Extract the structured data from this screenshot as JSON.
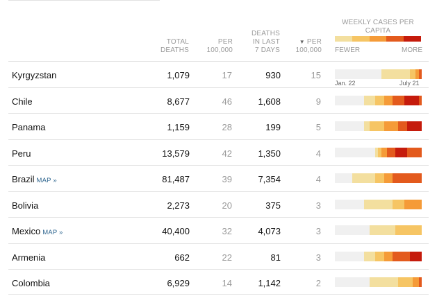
{
  "header": {
    "total_deaths": [
      "TOTAL",
      "DEATHS"
    ],
    "per_100k": [
      "PER",
      "100,000"
    ],
    "deaths_7d": [
      "DEATHS",
      "IN LAST",
      "7 DAYS"
    ],
    "per_100k_7d_arrow": "▼",
    "per_100k_7d": [
      "PER",
      "100,000"
    ],
    "weekly": [
      "WEEKLY CASES PER",
      "CAPITA"
    ]
  },
  "legend": {
    "fewer": "FEWER",
    "more": "MORE",
    "colors": [
      "#f3df9f",
      "#f6c564",
      "#f59b38",
      "#e35a1d",
      "#c51b0c"
    ]
  },
  "axis": {
    "start": "Jan. 22",
    "end": "July 21"
  },
  "colors": {
    "none": "#f0f0f0",
    "accent_link": "#326891"
  },
  "rows": [
    {
      "country": "Kyrgyzstan",
      "map": "",
      "total": "1,079",
      "per": "17",
      "deaths7": "930",
      "per7": "15",
      "weeks": [
        0,
        0,
        0,
        0,
        0,
        0,
        0,
        0,
        0,
        0,
        0,
        0,
        0,
        0,
        0,
        0,
        1,
        1,
        1,
        1,
        1,
        1,
        1,
        1,
        1,
        1,
        2,
        2,
        3,
        4
      ]
    },
    {
      "country": "Chile",
      "map": "",
      "total": "8,677",
      "per": "46",
      "deaths7": "1,608",
      "per7": "9",
      "weeks": [
        0,
        0,
        0,
        0,
        0,
        0,
        0,
        0,
        0,
        0,
        1,
        1,
        1,
        1,
        2,
        2,
        2,
        3,
        3,
        3,
        4,
        4,
        4,
        4,
        5,
        5,
        5,
        5,
        5,
        4
      ]
    },
    {
      "country": "Panama",
      "map": "",
      "total": "1,159",
      "per": "28",
      "deaths7": "199",
      "per7": "5",
      "weeks": [
        0,
        0,
        0,
        0,
        0,
        0,
        0,
        0,
        0,
        0,
        1,
        1,
        2,
        2,
        2,
        2,
        2,
        3,
        3,
        3,
        3,
        3,
        4,
        4,
        4,
        5,
        5,
        5,
        5,
        5
      ]
    },
    {
      "country": "Peru",
      "map": "",
      "total": "13,579",
      "per": "42",
      "deaths7": "1,350",
      "per7": "4",
      "weeks": [
        0,
        0,
        0,
        0,
        0,
        0,
        0,
        0,
        0,
        0,
        0,
        0,
        0,
        0,
        1,
        2,
        3,
        3,
        4,
        4,
        4,
        5,
        5,
        5,
        5,
        4,
        4,
        4,
        4,
        4
      ]
    },
    {
      "country": "Brazil",
      "map": "MAP »",
      "total": "81,487",
      "per": "39",
      "deaths7": "7,354",
      "per7": "4",
      "weeks": [
        0,
        0,
        0,
        0,
        0,
        0,
        1,
        1,
        1,
        1,
        1,
        1,
        1,
        1,
        2,
        2,
        2,
        3,
        3,
        3,
        4,
        4,
        4,
        4,
        4,
        4,
        4,
        4,
        4,
        4
      ]
    },
    {
      "country": "Bolivia",
      "map": "",
      "total": "2,273",
      "per": "20",
      "deaths7": "375",
      "per7": "3",
      "weeks": [
        0,
        0,
        0,
        0,
        0,
        0,
        0,
        0,
        0,
        0,
        1,
        1,
        1,
        1,
        1,
        1,
        1,
        1,
        1,
        1,
        2,
        2,
        2,
        2,
        3,
        3,
        3,
        3,
        3,
        3
      ]
    },
    {
      "country": "Mexico",
      "map": "MAP »",
      "total": "40,400",
      "per": "32",
      "deaths7": "4,073",
      "per7": "3",
      "weeks": [
        0,
        0,
        0,
        0,
        0,
        0,
        0,
        0,
        0,
        0,
        0,
        0,
        1,
        1,
        1,
        1,
        1,
        1,
        1,
        1,
        1,
        2,
        2,
        2,
        2,
        2,
        2,
        2,
        2,
        2
      ]
    },
    {
      "country": "Armenia",
      "map": "",
      "total": "662",
      "per": "22",
      "deaths7": "81",
      "per7": "3",
      "weeks": [
        0,
        0,
        0,
        0,
        0,
        0,
        0,
        0,
        0,
        0,
        1,
        1,
        1,
        1,
        2,
        2,
        2,
        3,
        3,
        3,
        4,
        4,
        4,
        4,
        4,
        4,
        5,
        5,
        5,
        5
      ]
    },
    {
      "country": "Colombia",
      "map": "",
      "total": "6,929",
      "per": "14",
      "deaths7": "1,142",
      "per7": "2",
      "weeks": [
        0,
        0,
        0,
        0,
        0,
        0,
        0,
        0,
        0,
        0,
        0,
        0,
        1,
        1,
        1,
        1,
        1,
        1,
        1,
        1,
        1,
        1,
        2,
        2,
        2,
        2,
        2,
        3,
        3,
        4
      ]
    }
  ]
}
